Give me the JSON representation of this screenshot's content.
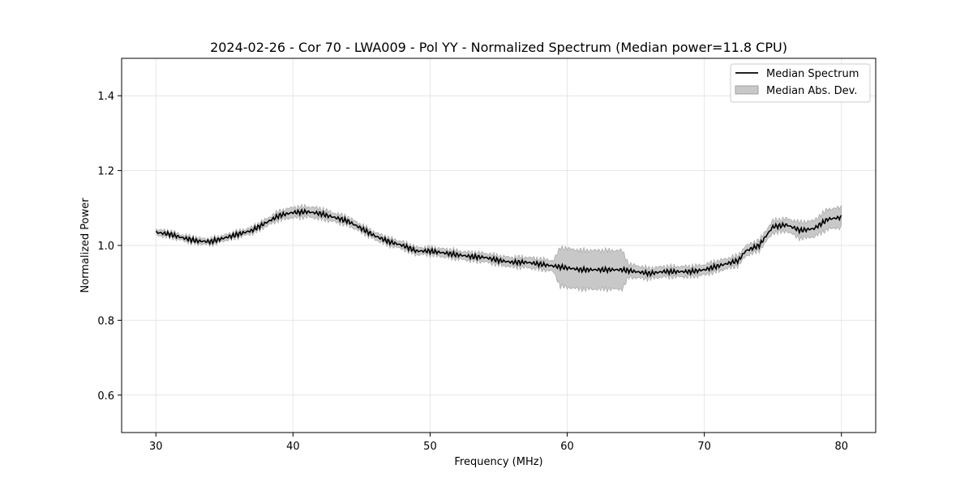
{
  "chart_data": {
    "type": "line",
    "title": "2024-02-26 - Cor 70 - LWA009 - Pol YY - Normalized Spectrum (Median power=11.8 CPU)",
    "xlabel": "Frequency (MHz)",
    "ylabel": "Normalized Power",
    "xlim": [
      27.5,
      82.5
    ],
    "ylim": [
      0.5,
      1.5
    ],
    "xticks": [
      30,
      40,
      50,
      60,
      70,
      80
    ],
    "yticks": [
      0.6,
      0.8,
      1.0,
      1.2,
      1.4
    ],
    "grid": true,
    "legend_position": "top-right",
    "colors": {
      "line": "#000000",
      "band": "#c8c8c8",
      "band_edge": "#a0a0a0",
      "grid": "#e6e6e6"
    },
    "series": [
      {
        "name": "Median Spectrum",
        "x": [
          30,
          31,
          32,
          33,
          34,
          35,
          36,
          37,
          38,
          39,
          40,
          41,
          42,
          43,
          44,
          45,
          46,
          47,
          48,
          49,
          50,
          51,
          52,
          53,
          54,
          55,
          56,
          57,
          58,
          59,
          60,
          61,
          62,
          63,
          64,
          65,
          66,
          67,
          68,
          69,
          70,
          71,
          72,
          72.5,
          73,
          74,
          75,
          76,
          77,
          78,
          79,
          80
        ],
        "values": [
          1.035,
          1.03,
          1.02,
          1.012,
          1.01,
          1.02,
          1.03,
          1.04,
          1.06,
          1.08,
          1.088,
          1.09,
          1.085,
          1.075,
          1.065,
          1.045,
          1.025,
          1.01,
          1.0,
          0.985,
          0.985,
          0.98,
          0.975,
          0.97,
          0.968,
          0.96,
          0.955,
          0.955,
          0.95,
          0.945,
          0.94,
          0.935,
          0.935,
          0.935,
          0.935,
          0.93,
          0.925,
          0.93,
          0.93,
          0.93,
          0.935,
          0.945,
          0.955,
          0.96,
          0.985,
          1.0,
          1.05,
          1.055,
          1.04,
          1.045,
          1.07,
          1.075
        ]
      },
      {
        "name": "Median Abs. Dev.",
        "x": [
          30,
          31,
          32,
          33,
          34,
          35,
          36,
          37,
          38,
          39,
          40,
          41,
          42,
          43,
          44,
          45,
          46,
          47,
          48,
          49,
          50,
          51,
          52,
          53,
          54,
          55,
          56,
          57,
          58,
          59,
          59.5,
          60,
          61,
          62,
          63,
          64,
          64.5,
          65,
          66,
          67,
          68,
          69,
          70,
          71,
          72,
          72.5,
          73,
          74,
          75,
          76,
          77,
          78,
          79,
          80
        ],
        "dev": [
          0.006,
          0.006,
          0.006,
          0.006,
          0.006,
          0.006,
          0.006,
          0.007,
          0.008,
          0.01,
          0.012,
          0.012,
          0.012,
          0.01,
          0.009,
          0.008,
          0.008,
          0.008,
          0.008,
          0.008,
          0.008,
          0.009,
          0.009,
          0.009,
          0.01,
          0.01,
          0.011,
          0.012,
          0.012,
          0.013,
          0.05,
          0.05,
          0.05,
          0.05,
          0.05,
          0.05,
          0.015,
          0.015,
          0.012,
          0.012,
          0.012,
          0.012,
          0.012,
          0.012,
          0.012,
          0.012,
          0.012,
          0.012,
          0.015,
          0.015,
          0.02,
          0.02,
          0.025,
          0.025
        ]
      }
    ]
  }
}
